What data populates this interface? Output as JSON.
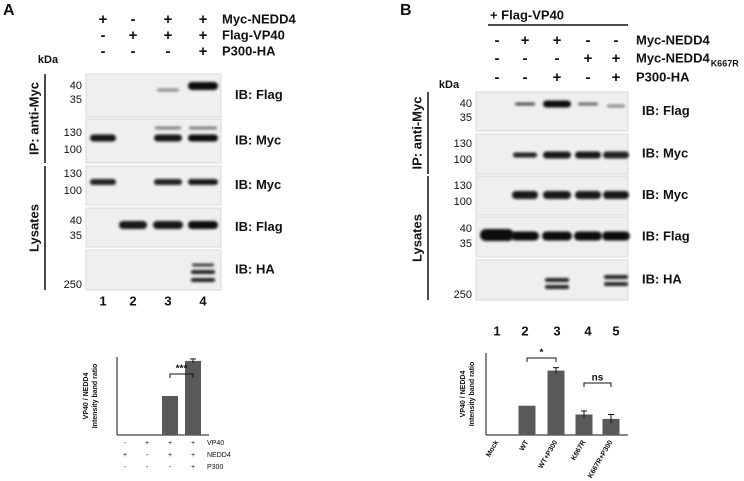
{
  "panel_a": {
    "label": "A",
    "conditions": [
      {
        "label": "Myc-NEDD4",
        "signs": [
          "+",
          "-",
          "+",
          "+"
        ]
      },
      {
        "label": "Flag-VP40",
        "signs": [
          "-",
          "+",
          "+",
          "+"
        ]
      },
      {
        "label": "P300-HA",
        "signs": [
          "-",
          "-",
          "-",
          "+"
        ]
      }
    ],
    "kda": "kDa",
    "groups": [
      {
        "label": "IP: anti-Myc"
      },
      {
        "label": "Lysates"
      }
    ],
    "blots": [
      {
        "label": "IB: Flag",
        "markers": [
          40,
          35
        ]
      },
      {
        "label": "IB: Myc",
        "markers": [
          130,
          100
        ]
      },
      {
        "label": "IB: Myc",
        "markers": [
          130,
          100
        ]
      },
      {
        "label": "IB: Flag",
        "markers": [
          40,
          35
        ]
      },
      {
        "label": "IB: HA",
        "markers": [
          250
        ]
      }
    ],
    "lanes": [
      1,
      2,
      3,
      4
    ],
    "chart": {
      "type": "bar",
      "ylabel": [
        "VP40 / NEDD4",
        "Intensity band ratio"
      ],
      "values": [
        0,
        0,
        1,
        1.9
      ],
      "errors": [
        0,
        0,
        0,
        0.05
      ],
      "ylim": [
        0,
        2
      ],
      "color": "#595959",
      "significance": [
        {
          "label": "***"
        }
      ],
      "condition_rows": [
        {
          "label": "VP40",
          "signs": [
            "-",
            "+",
            "+",
            "+"
          ]
        },
        {
          "label": "NEDD4",
          "signs": [
            "+",
            "-",
            "+",
            "+"
          ]
        },
        {
          "label": "P300",
          "signs": [
            "-",
            "-",
            "-",
            "+"
          ]
        }
      ]
    }
  },
  "panel_b": {
    "label": "B",
    "header": "+ Flag-VP40",
    "conditions": [
      {
        "label": "Myc-NEDD4",
        "signs": [
          "-",
          "+",
          "+",
          "-",
          "-"
        ]
      },
      {
        "label": "Myc-NEDD4",
        "subscript": "K667R",
        "signs": [
          "-",
          "-",
          "-",
          "+",
          "+"
        ]
      },
      {
        "label": "P300-HA",
        "signs": [
          "-",
          "-",
          "+",
          "-",
          "+"
        ]
      }
    ],
    "kda": "kDa",
    "groups": [
      {
        "label": "IP: anti-Myc"
      },
      {
        "label": "Lysates"
      }
    ],
    "blots": [
      {
        "label": "IB: Flag",
        "markers": [
          40,
          35
        ]
      },
      {
        "label": "IB: Myc",
        "markers": [
          130,
          100
        ]
      },
      {
        "label": "IB: Myc",
        "markers": [
          130,
          100
        ]
      },
      {
        "label": "IB: Flag",
        "markers": [
          40,
          35
        ]
      },
      {
        "label": "IB: HA",
        "markers": [
          250
        ]
      }
    ],
    "lanes": [
      1,
      2,
      3,
      4,
      5
    ],
    "chart": {
      "type": "bar",
      "ylabel": [
        "VP40 / NEDD4",
        "Intensity band ratio"
      ],
      "categories": [
        "Mock",
        "WT",
        "WT+P300",
        "K667R",
        "K667R+P300"
      ],
      "values": [
        0,
        1,
        2.2,
        0.7,
        0.55
      ],
      "errors": [
        0,
        0,
        0.1,
        0.12,
        0.15
      ],
      "ylim": [
        0,
        2.8
      ],
      "color": "#595959",
      "significance": [
        {
          "label": "*"
        },
        {
          "label": "ns"
        }
      ]
    }
  }
}
